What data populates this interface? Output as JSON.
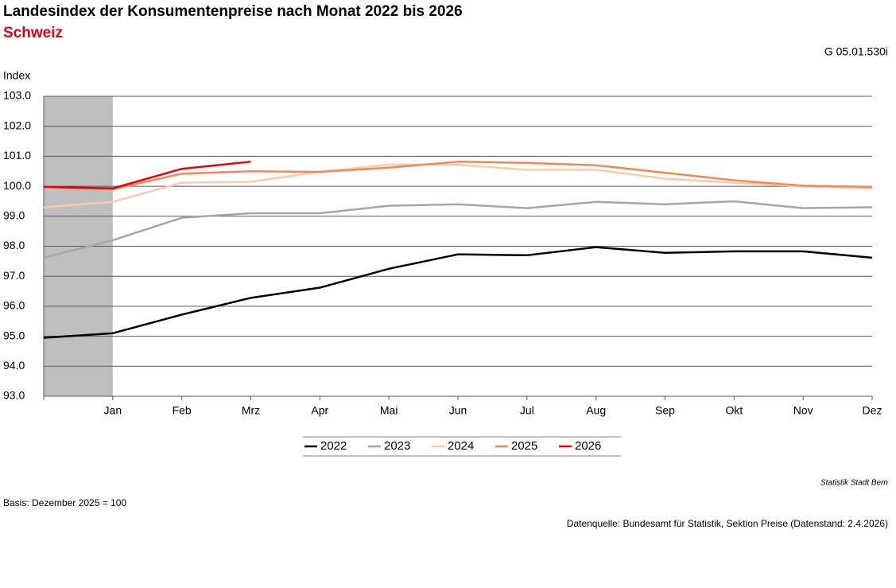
{
  "chart_data": {
    "type": "line",
    "title": "Landesindex der Konsumentenpreise nach Monat 2022 bis 2026",
    "subtitle": "Schweiz",
    "code": "G 05.01.530i",
    "y_label": "Index",
    "source_org": "Statistik Stadt Bern",
    "basis": "Basis: Dezember 2025 = 100",
    "source": "Datenquelle: Bundesamt für Statistik, Sektion Preise (Datenstand: 2.4.2026)",
    "categories": [
      null,
      "Jan",
      "Feb",
      "Mrz",
      "Apr",
      "Mai",
      "Jun",
      "Jul",
      "Aug",
      "Sep",
      "Okt",
      "Nov",
      "Dez"
    ],
    "series": [
      {
        "name": "2022",
        "color": "#000000",
        "values": [
          94.95,
          95.1,
          95.72,
          96.28,
          96.62,
          97.25,
          97.73,
          97.7,
          97.97,
          97.78,
          97.83,
          97.83,
          97.62
        ]
      },
      {
        "name": "2023",
        "color": "#a6a6a6",
        "values": [
          97.62,
          98.2,
          98.95,
          99.1,
          99.1,
          99.35,
          99.4,
          99.27,
          99.48,
          99.4,
          99.5,
          99.27,
          99.3
        ]
      },
      {
        "name": "2024",
        "color": "#f8cbad",
        "values": [
          99.3,
          99.48,
          100.12,
          100.15,
          100.48,
          100.72,
          100.72,
          100.55,
          100.55,
          100.25,
          100.12,
          100.0,
          99.93
        ]
      },
      {
        "name": "2025",
        "color": "#f0895a",
        "values": [
          99.98,
          99.9,
          100.42,
          100.5,
          100.48,
          100.62,
          100.82,
          100.78,
          100.7,
          100.45,
          100.2,
          100.02,
          99.98
        ]
      },
      {
        "name": "2026",
        "color": "#e3000f",
        "values": [
          99.98,
          99.93,
          100.58,
          100.82,
          null,
          null,
          null,
          null,
          null,
          null,
          null,
          null,
          null
        ]
      }
    ],
    "ylim": [
      93,
      103
    ],
    "yticks": [
      {
        "value": 93,
        "label": "93.0"
      },
      {
        "value": 94,
        "label": "94.0"
      },
      {
        "value": 95,
        "label": "95.0"
      },
      {
        "value": 96,
        "label": "96.0"
      },
      {
        "value": 97,
        "label": "97.0"
      },
      {
        "value": 98,
        "label": "98.0"
      },
      {
        "value": 99,
        "label": "99.0"
      },
      {
        "value": 100,
        "label": "100.0"
      },
      {
        "value": 101,
        "label": "101.0"
      },
      {
        "value": 102,
        "label": "102.0"
      },
      {
        "value": 103,
        "label": "103.0"
      }
    ],
    "grid": true,
    "legend": "bottom"
  }
}
